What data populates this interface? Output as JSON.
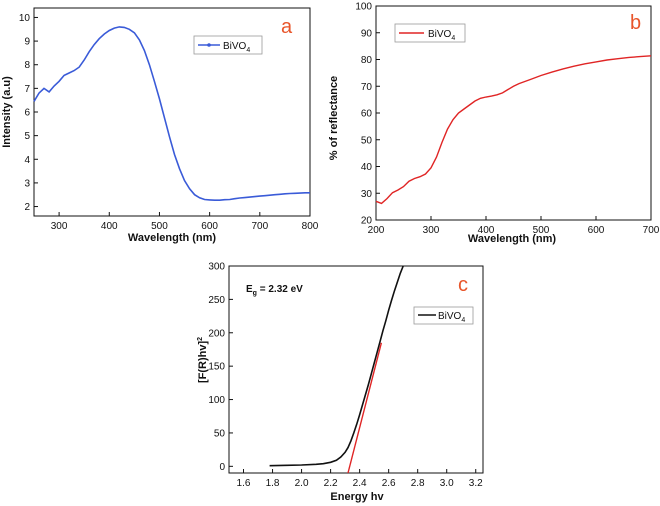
{
  "chart_data": [
    {
      "panel": "a",
      "type": "line",
      "title": "",
      "xlabel": "Wavelength (nm)",
      "ylabel": "Intensity (a.u)",
      "xlim": [
        250,
        800
      ],
      "ylim": [
        1.6,
        10.4
      ],
      "xticks": [
        300,
        400,
        500,
        600,
        700,
        800
      ],
      "yticks": [
        2,
        3,
        4,
        5,
        6,
        7,
        8,
        9,
        10
      ],
      "grid": false,
      "legend": {
        "position": "top-right",
        "entries": [
          {
            "name": "BiVO",
            "sub": "4",
            "color": "#3a5bd8",
            "marker": true
          }
        ]
      },
      "series": [
        {
          "name": "BiVO4",
          "color": "#3a5bd8",
          "x": [
            250,
            260,
            270,
            280,
            290,
            300,
            310,
            320,
            330,
            340,
            350,
            360,
            370,
            380,
            390,
            400,
            410,
            420,
            430,
            440,
            450,
            460,
            470,
            480,
            490,
            500,
            510,
            520,
            530,
            540,
            550,
            560,
            570,
            580,
            590,
            600,
            610,
            620,
            630,
            640,
            650,
            660,
            670,
            680,
            690,
            700,
            710,
            720,
            730,
            740,
            750,
            760,
            770,
            780,
            790,
            800
          ],
          "y": [
            6.45,
            6.8,
            7.0,
            6.85,
            7.1,
            7.3,
            7.55,
            7.65,
            7.75,
            7.9,
            8.2,
            8.55,
            8.85,
            9.1,
            9.3,
            9.45,
            9.55,
            9.6,
            9.58,
            9.5,
            9.35,
            9.05,
            8.6,
            8.0,
            7.3,
            6.55,
            5.75,
            4.95,
            4.2,
            3.6,
            3.1,
            2.75,
            2.5,
            2.37,
            2.3,
            2.28,
            2.27,
            2.27,
            2.29,
            2.3,
            2.33,
            2.36,
            2.38,
            2.4,
            2.42,
            2.44,
            2.46,
            2.48,
            2.5,
            2.52,
            2.54,
            2.55,
            2.56,
            2.57,
            2.58,
            2.58
          ]
        }
      ]
    },
    {
      "panel": "b",
      "type": "line",
      "title": "",
      "xlabel": "Wavelength (nm)",
      "ylabel": "% of reflectance",
      "xlim": [
        200,
        700
      ],
      "ylim": [
        20,
        100
      ],
      "xticks": [
        200,
        300,
        400,
        500,
        600,
        700
      ],
      "yticks": [
        20,
        30,
        40,
        50,
        60,
        70,
        80,
        90,
        100
      ],
      "grid": false,
      "legend": {
        "position": "top-left",
        "entries": [
          {
            "name": "BiVO",
            "sub": "4",
            "color": "#e02525",
            "marker": false
          }
        ]
      },
      "series": [
        {
          "name": "BiVO4",
          "color": "#e02525",
          "x": [
            200,
            210,
            220,
            230,
            240,
            250,
            260,
            270,
            280,
            290,
            300,
            310,
            320,
            330,
            340,
            350,
            360,
            370,
            380,
            390,
            400,
            410,
            420,
            430,
            440,
            450,
            460,
            480,
            500,
            520,
            540,
            560,
            580,
            600,
            620,
            640,
            660,
            680,
            700
          ],
          "y": [
            27,
            26.2,
            28,
            30.2,
            31.2,
            32.5,
            34.5,
            35.5,
            36.2,
            37.2,
            39.5,
            43.5,
            49,
            54,
            57.5,
            60,
            61.5,
            63,
            64.5,
            65.5,
            66,
            66.3,
            66.8,
            67.5,
            68.8,
            70,
            71,
            72.5,
            74,
            75.3,
            76.5,
            77.5,
            78.4,
            79.1,
            79.8,
            80.3,
            80.8,
            81.1,
            81.4
          ]
        }
      ]
    },
    {
      "panel": "c",
      "type": "line",
      "title": "",
      "xlabel": "Energy hv",
      "ylabel": "[F(R)hv]",
      "ylabel_sup": "2",
      "xlim": [
        1.5,
        3.25
      ],
      "ylim": [
        -10,
        300
      ],
      "xticks": [
        1.6,
        1.8,
        2.0,
        2.2,
        2.4,
        2.6,
        2.8,
        3.0,
        3.2
      ],
      "yticks": [
        0,
        50,
        100,
        150,
        200,
        250,
        300
      ],
      "grid": false,
      "annotation": {
        "text": "E",
        "sub": "g",
        "rest": " = 2.32 eV"
      },
      "legend": {
        "position": "top-right",
        "entries": [
          {
            "name": "BiVO",
            "sub": "4",
            "color": "#111111",
            "marker": false
          }
        ]
      },
      "series": [
        {
          "name": "BiVO4",
          "color": "#111111",
          "x": [
            1.78,
            1.9,
            2.0,
            2.1,
            2.15,
            2.2,
            2.24,
            2.27,
            2.3,
            2.32,
            2.34,
            2.36,
            2.38,
            2.4,
            2.42,
            2.44,
            2.46,
            2.48,
            2.5,
            2.52,
            2.54,
            2.56,
            2.58,
            2.6,
            2.62,
            2.64,
            2.66,
            2.68,
            2.7
          ],
          "y": [
            1,
            1.5,
            2,
            3,
            4,
            6,
            9,
            14,
            21,
            28,
            38,
            50,
            63,
            77,
            92,
            107,
            122,
            138,
            154,
            170,
            186,
            203,
            218,
            234,
            249,
            263,
            276,
            289,
            300
          ]
        },
        {
          "name": "fit",
          "color": "#e02525",
          "x": [
            2.32,
            2.55
          ],
          "y": [
            -10,
            185
          ]
        }
      ]
    }
  ]
}
